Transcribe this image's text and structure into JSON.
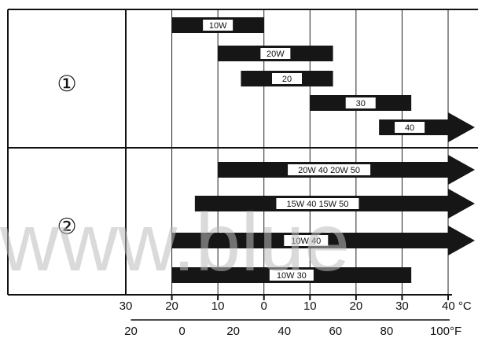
{
  "chart_data": {
    "type": "bar",
    "title": "",
    "xlabel": "",
    "ylabel": "",
    "celsius_ticks": [
      "30",
      "20",
      "10",
      "0",
      "10",
      "20",
      "30",
      "40 °C"
    ],
    "fahrenheit_ticks": [
      "20",
      "0",
      "20",
      "40",
      "60",
      "80",
      "100°F"
    ],
    "xlim": [
      -30,
      40
    ],
    "groups": [
      {
        "label": "①",
        "series": [
          {
            "name": "10W",
            "start": -20,
            "end": 0,
            "open_end": false
          },
          {
            "name": "20W",
            "start": -10,
            "end": 15,
            "open_end": false
          },
          {
            "name": "20",
            "start": -5,
            "end": 15,
            "open_end": false
          },
          {
            "name": "30",
            "start": 10,
            "end": 32,
            "open_end": false
          },
          {
            "name": "40",
            "start": 25,
            "end": 40,
            "open_end": true
          }
        ]
      },
      {
        "label": "②",
        "series": [
          {
            "name": "20W 40 20W 50",
            "start": -10,
            "end": 40,
            "open_end": true
          },
          {
            "name": "15W 40 15W 50",
            "start": -15,
            "end": 40,
            "open_end": true
          },
          {
            "name": "10W 40",
            "start": -20,
            "end": 40,
            "open_end": true
          },
          {
            "name": "10W 30",
            "start": -20,
            "end": 32,
            "open_end": false
          }
        ]
      }
    ]
  },
  "watermark": "www.blue"
}
